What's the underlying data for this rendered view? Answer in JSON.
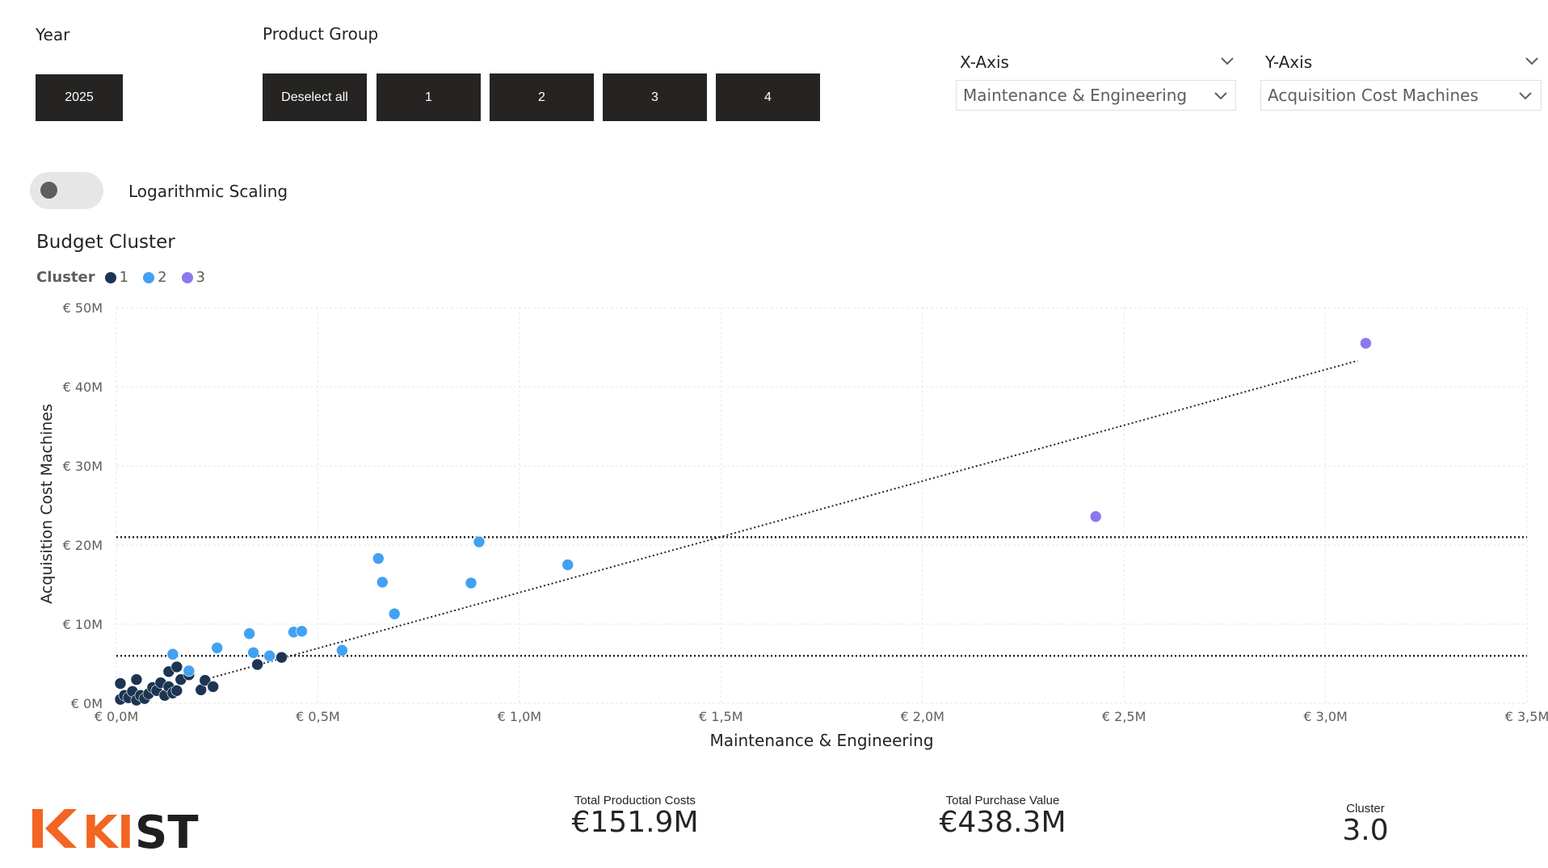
{
  "filters": {
    "year": {
      "label": "Year",
      "options": [
        "2025"
      ]
    },
    "product_group": {
      "label": "Product Group",
      "options": [
        "Deselect all",
        "1",
        "2",
        "3",
        "4"
      ]
    }
  },
  "axis_selectors": {
    "x": {
      "title": "X-Axis",
      "value": "Maintenance & Engineering"
    },
    "y": {
      "title": "Y-Axis",
      "value": "Acquisition Cost Machines"
    }
  },
  "toggle": {
    "label": "Logarithmic Scaling",
    "on": false
  },
  "chart_title": "Budget Cluster",
  "legend": {
    "title": "Cluster",
    "items": [
      {
        "label": "1",
        "color": "#1c3553"
      },
      {
        "label": "2",
        "color": "#41a1f2"
      },
      {
        "label": "3",
        "color": "#8b78f0"
      }
    ]
  },
  "chart_data": {
    "type": "scatter",
    "xlabel": "Maintenance & Engineering",
    "ylabel": "Acquisition Cost Machines",
    "xlim": [
      0,
      3.5
    ],
    "ylim": [
      0,
      50
    ],
    "x_unit": "M €",
    "y_unit": "M €",
    "x_ticks": [
      "€ 0,0M",
      "€ 0,5M",
      "€ 1,0M",
      "€ 1,5M",
      "€ 2,0M",
      "€ 2,5M",
      "€ 3,0M",
      "€ 3,5M"
    ],
    "y_ticks": [
      "€ 0M",
      "€ 10M",
      "€ 20M",
      "€ 30M",
      "€ 40M",
      "€ 50M"
    ],
    "grid": true,
    "trendline": {
      "from": [
        0.22,
        3.0
      ],
      "to": [
        3.08,
        43.3
      ]
    },
    "reference_lines_y": [
      21,
      6
    ],
    "series": [
      {
        "name": "1",
        "color": "#1c3553",
        "points": [
          [
            0.01,
            0.5
          ],
          [
            0.02,
            1.0
          ],
          [
            0.01,
            2.5
          ],
          [
            0.03,
            0.7
          ],
          [
            0.04,
            1.5
          ],
          [
            0.05,
            0.4
          ],
          [
            0.06,
            1.0
          ],
          [
            0.05,
            3.0
          ],
          [
            0.07,
            0.6
          ],
          [
            0.08,
            1.2
          ],
          [
            0.09,
            2.0
          ],
          [
            0.1,
            1.6
          ],
          [
            0.11,
            2.6
          ],
          [
            0.12,
            1.0
          ],
          [
            0.13,
            2.1
          ],
          [
            0.13,
            4.0
          ],
          [
            0.14,
            1.3
          ],
          [
            0.15,
            1.6
          ],
          [
            0.15,
            4.6
          ],
          [
            0.16,
            3.0
          ],
          [
            0.18,
            3.6
          ],
          [
            0.21,
            1.7
          ],
          [
            0.22,
            2.9
          ],
          [
            0.24,
            2.1
          ],
          [
            0.35,
            4.9
          ],
          [
            0.41,
            5.8
          ]
        ]
      },
      {
        "name": "2",
        "color": "#41a1f2",
        "points": [
          [
            0.14,
            6.2
          ],
          [
            0.18,
            4.1
          ],
          [
            0.25,
            7.0
          ],
          [
            0.33,
            8.8
          ],
          [
            0.34,
            6.4
          ],
          [
            0.38,
            6.0
          ],
          [
            0.44,
            9.0
          ],
          [
            0.46,
            9.1
          ],
          [
            0.56,
            6.7
          ],
          [
            0.65,
            18.3
          ],
          [
            0.66,
            15.3
          ],
          [
            0.69,
            11.3
          ],
          [
            0.88,
            15.2
          ],
          [
            0.9,
            20.4
          ],
          [
            1.12,
            17.5
          ]
        ]
      },
      {
        "name": "3",
        "color": "#8b78f0",
        "points": [
          [
            2.43,
            23.6
          ],
          [
            3.1,
            45.5
          ]
        ]
      }
    ]
  },
  "kpis": [
    {
      "label": "Total Production Costs",
      "value": "€151.9M"
    },
    {
      "label": "Total Purchase Value",
      "value": "€438.3M"
    },
    {
      "label": "Cluster",
      "value": "3.0"
    }
  ],
  "logo": {
    "text": "KIST",
    "accent": "#f26522",
    "dark": "#1f1f1f"
  }
}
